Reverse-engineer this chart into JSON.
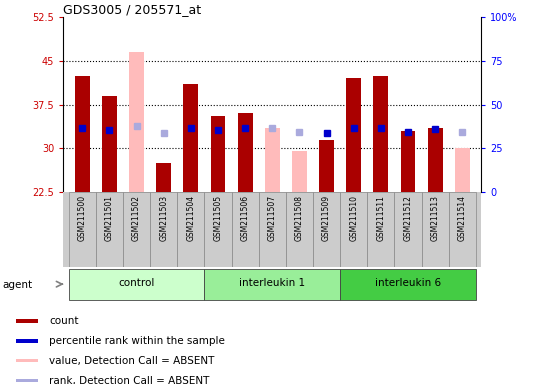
{
  "title": "GDS3005 / 205571_at",
  "samples": [
    "GSM211500",
    "GSM211501",
    "GSM211502",
    "GSM211503",
    "GSM211504",
    "GSM211505",
    "GSM211506",
    "GSM211507",
    "GSM211508",
    "GSM211509",
    "GSM211510",
    "GSM211511",
    "GSM211512",
    "GSM211513",
    "GSM211514"
  ],
  "groups": [
    {
      "label": "control",
      "color": "#ccffcc",
      "samples": [
        0,
        1,
        2,
        3,
        4
      ]
    },
    {
      "label": "interleukin 1",
      "color": "#99ee99",
      "samples": [
        5,
        6,
        7,
        8,
        9
      ]
    },
    {
      "label": "interleukin 6",
      "color": "#44cc44",
      "samples": [
        10,
        11,
        12,
        13,
        14
      ]
    }
  ],
  "bar_values": [
    42.5,
    39.0,
    null,
    27.5,
    41.0,
    35.5,
    36.0,
    null,
    null,
    31.5,
    42.0,
    42.5,
    33.0,
    33.5,
    null
  ],
  "bar_absent": [
    null,
    null,
    46.5,
    null,
    null,
    null,
    null,
    33.5,
    29.5,
    null,
    null,
    null,
    null,
    null,
    30.0
  ],
  "rank_present": [
    36.5,
    35.5,
    null,
    null,
    36.5,
    35.5,
    36.5,
    null,
    null,
    34.0,
    36.5,
    36.5,
    34.5,
    36.0,
    null
  ],
  "rank_absent": [
    null,
    null,
    37.5,
    33.5,
    null,
    null,
    null,
    36.5,
    34.5,
    null,
    null,
    null,
    null,
    null,
    34.5
  ],
  "ylim_left": [
    22.5,
    52.5
  ],
  "ylim_right": [
    0,
    100
  ],
  "yticks_left": [
    22.5,
    30,
    37.5,
    45,
    52.5
  ],
  "yticks_right": [
    0,
    25,
    50,
    75,
    100
  ],
  "bar_width": 0.55,
  "bar_color_present": "#aa0000",
  "bar_color_absent": "#ffbbbb",
  "rank_color_present": "#0000cc",
  "rank_color_absent": "#aaaadd",
  "xticklabel_bg": "#cccccc",
  "grid_dotted_at": [
    30,
    37.5,
    45
  ],
  "legend_items": [
    {
      "color": "#aa0000",
      "label": "count"
    },
    {
      "color": "#0000cc",
      "label": "percentile rank within the sample"
    },
    {
      "color": "#ffbbbb",
      "label": "value, Detection Call = ABSENT"
    },
    {
      "color": "#aaaadd",
      "label": "rank, Detection Call = ABSENT"
    }
  ]
}
